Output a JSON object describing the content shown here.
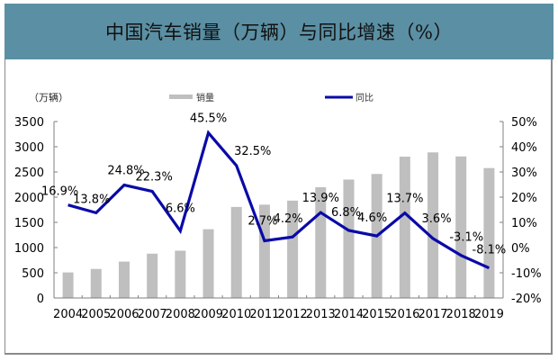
{
  "header": {
    "title": "中国汽车销量（万辆）与同比增速（%）",
    "background_color": "#5b8fa3"
  },
  "legend": {
    "unit_label": "（万辆）",
    "bar_label": "销量",
    "line_label": "同比"
  },
  "chart_data": {
    "type": "bar+line",
    "title": "中国汽车销量（万辆）与同比增速（%）",
    "categories": [
      "2004",
      "2005",
      "2006",
      "2007",
      "2008",
      "2009",
      "2010",
      "2011",
      "2012",
      "2013",
      "2014",
      "2015",
      "2016",
      "2017",
      "2018",
      "2019"
    ],
    "series": [
      {
        "name": "销量",
        "type": "bar",
        "axis": "left",
        "unit": "万辆",
        "color": "#bfbfbf",
        "values": [
          507,
          576,
          722,
          879,
          938,
          1364,
          1806,
          1851,
          1931,
          2198,
          2349,
          2460,
          2803,
          2888,
          2808,
          2577
        ]
      },
      {
        "name": "同比",
        "type": "line",
        "axis": "right",
        "unit": "%",
        "color": "#0a0aa8",
        "values": [
          16.9,
          13.8,
          24.8,
          22.3,
          6.6,
          45.5,
          32.5,
          2.7,
          4.2,
          13.9,
          6.8,
          4.6,
          13.7,
          3.6,
          -3.1,
          -8.1
        ],
        "data_labels": [
          "16.9%",
          "13.8%",
          "24.8%",
          "22.3%",
          "6.6%",
          "45.5%",
          "32.5%",
          "2.7%",
          "4.2%",
          "13.9%",
          "6.8%",
          "4.6%",
          "13.7%",
          "3.6%",
          "-3.1%",
          "-8.1%"
        ]
      }
    ],
    "left_axis": {
      "label": "（万辆）",
      "ylim": [
        0,
        3500
      ],
      "ticks": [
        "0",
        "500",
        "1000",
        "1500",
        "2000",
        "2500",
        "3000",
        "3500"
      ]
    },
    "right_axis": {
      "ylim": [
        -20,
        50
      ],
      "ticks": [
        "-20%",
        "-10%",
        "0%",
        "10%",
        "20%",
        "30%",
        "40%",
        "50%"
      ]
    },
    "xlabel": "",
    "grid": false,
    "legend_position": "top"
  }
}
